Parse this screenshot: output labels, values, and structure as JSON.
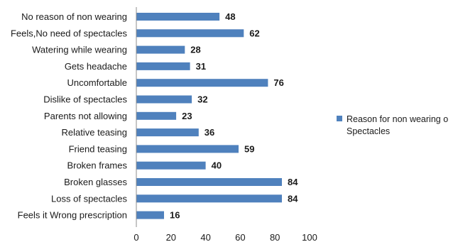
{
  "chart_data": {
    "type": "bar",
    "orientation": "horizontal",
    "categories": [
      "No reason of non wearing",
      "Feels,No need of spectacles",
      "Watering while wearing",
      "Gets headache",
      "Uncomfortable",
      "Dislike of spectacles",
      "Parents not allowing",
      "Relative teasing",
      "Friend teasing",
      "Broken frames",
      "Broken glasses",
      "Loss  of spectacles",
      "Feels it Wrong prescription"
    ],
    "series": [
      {
        "name": "Reason for non wearing of Spectacles",
        "legend_line1": "Reason for non wearing o",
        "legend_line2": "Spectacles",
        "values": [
          48,
          62,
          28,
          31,
          76,
          32,
          23,
          36,
          59,
          40,
          84,
          84,
          16
        ],
        "color": "#4f81bd"
      }
    ],
    "x_ticks": [
      "0",
      "20",
      "40",
      "60",
      "80",
      "100"
    ],
    "xlim": [
      0,
      100
    ],
    "grid": false,
    "legend_position": "right"
  }
}
